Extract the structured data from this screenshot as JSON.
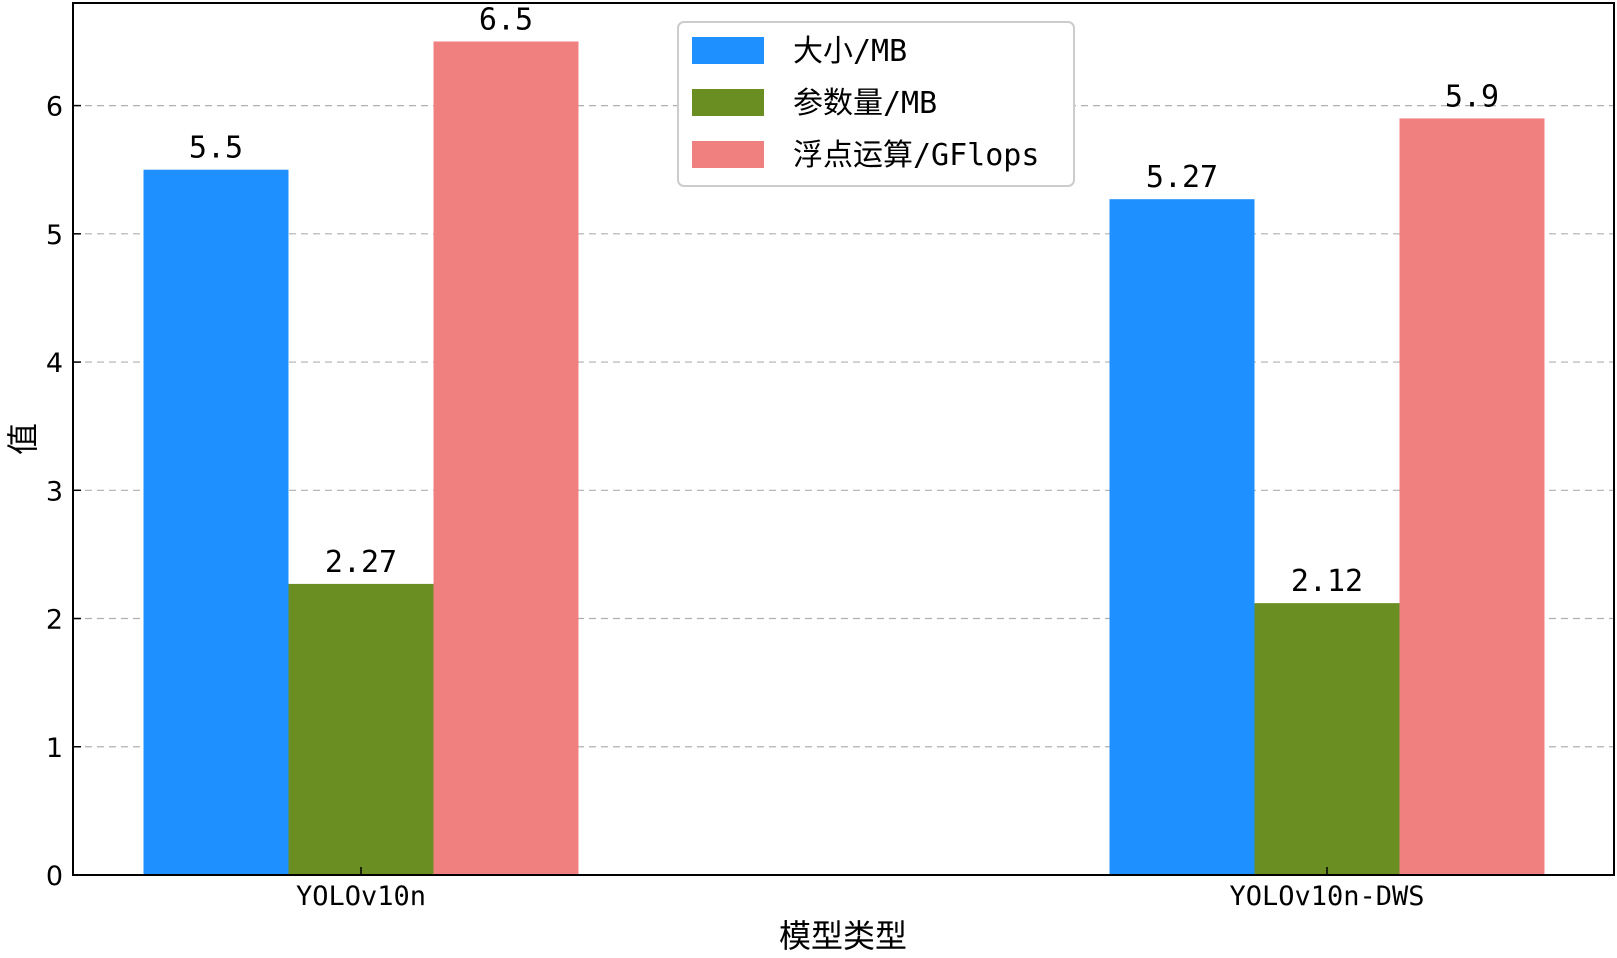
{
  "chart_data": {
    "type": "bar",
    "title": "",
    "xlabel": "模型类型",
    "ylabel": "值",
    "categories": [
      "YOLOv10n",
      "YOLOv10n-DWS"
    ],
    "series": [
      {
        "name": "大小/MB",
        "values": [
          5.5,
          5.27
        ],
        "labels": [
          "5.5",
          "5.27"
        ],
        "color": "#1e90ff"
      },
      {
        "name": "参数量/MB",
        "values": [
          2.27,
          2.12
        ],
        "labels": [
          "2.27",
          "2.12"
        ],
        "color": "#6b8e23"
      },
      {
        "name": "浮点运算/GFlops",
        "values": [
          6.5,
          5.9
        ],
        "labels": [
          "6.5",
          "5.9"
        ],
        "color": "#f08080"
      }
    ],
    "ylim": [
      0,
      6.8
    ],
    "yticks": [
      "0",
      "1",
      "2",
      "3",
      "4",
      "5",
      "6"
    ],
    "grid": "y-dashed",
    "legend_position": "top-center"
  }
}
